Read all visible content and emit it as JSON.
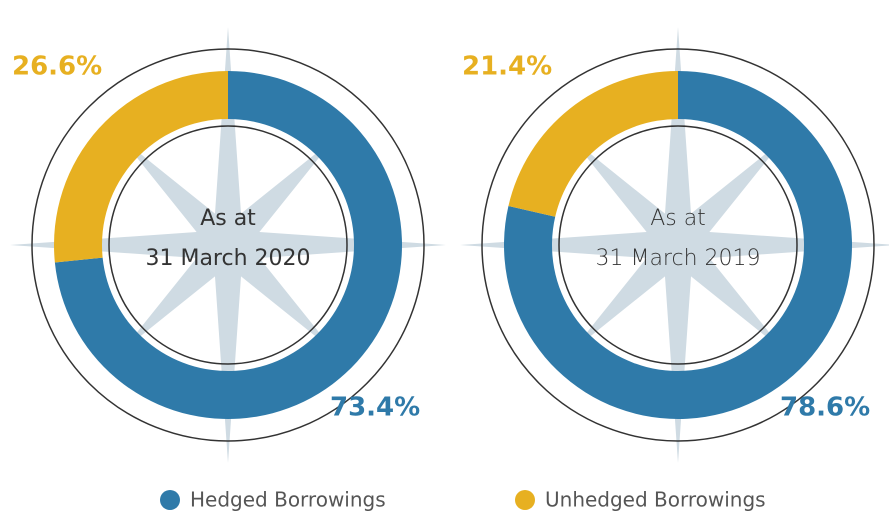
{
  "chart_data": [
    {
      "type": "pie",
      "title": [
        "As at",
        "31 March 2020"
      ],
      "values": [
        73.4,
        26.6
      ],
      "value_labels": [
        "73.4%",
        "26.6%"
      ]
    },
    {
      "type": "pie",
      "title": [
        "As at",
        "31 March 2019"
      ],
      "values": [
        78.6,
        21.4
      ],
      "value_labels": [
        "78.6%",
        "21.4%"
      ]
    }
  ],
  "legend": {
    "categories": [
      "Hedged Borrowings",
      "Unhedged Borrowings"
    ],
    "colors": [
      "#2f7aa9",
      "#e7b021"
    ]
  }
}
